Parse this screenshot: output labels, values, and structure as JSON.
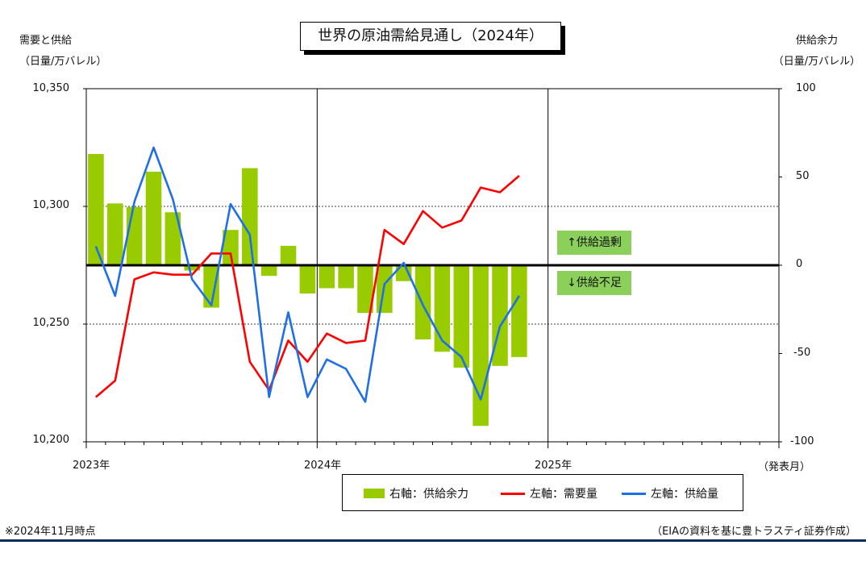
{
  "chart_data": {
    "type": "bar+line",
    "title": "世界の原油需給見通し（2024年）",
    "left_axis": {
      "label_line1": "需要と供給",
      "label_line2": "（日量/万バレル）",
      "ylim": [
        10200,
        10350
      ],
      "ticks": [
        "10,350",
        "10,300",
        "10,250",
        "10,200"
      ]
    },
    "right_axis": {
      "label_line1": "供給余力",
      "label_line2": "（日量/万バレル）",
      "ylim": [
        -100,
        100
      ],
      "ticks": [
        "100",
        "50",
        "0",
        "-50",
        "-100"
      ]
    },
    "x_axis": {
      "tick_labels": [
        "2023年",
        "2024年",
        "2025年"
      ],
      "unit_label": "（発表月）"
    },
    "series": [
      {
        "name": "右軸：供給余力",
        "axis": "right",
        "style": "bar",
        "color": "#99cc00",
        "values": [
          63,
          35,
          33,
          53,
          30,
          -3,
          -24,
          20,
          55,
          -6,
          11,
          -16,
          -13,
          -13,
          -27,
          -27,
          -9,
          -42,
          -49,
          -58,
          -91,
          -57,
          -52
        ]
      },
      {
        "name": "左軸：需要量",
        "axis": "left",
        "style": "line",
        "color": "#ff0000",
        "values": [
          10219,
          10226,
          10269,
          10272,
          10271,
          10271,
          10280,
          10280,
          10234,
          10222,
          10243,
          10234,
          10246,
          10242,
          10243,
          10290,
          10284,
          10298,
          10291,
          10294,
          10308,
          10306,
          10313
        ]
      },
      {
        "name": "左軸：供給量",
        "axis": "left",
        "style": "line",
        "color": "#1f6fe6",
        "values": [
          10283,
          10262,
          10302,
          10325,
          10303,
          10269,
          10258,
          10301,
          10288,
          10219,
          10255,
          10219,
          10235,
          10231,
          10217,
          10267,
          10276,
          10258,
          10243,
          10236,
          10218,
          10249,
          10262
        ]
      }
    ],
    "annotations": [
      "↑供給過剰",
      "↓供給不足"
    ]
  },
  "footer": {
    "note": "※2024年11月時点",
    "source": "（EIAの資料を基に豊トラスティ証券作成）"
  }
}
